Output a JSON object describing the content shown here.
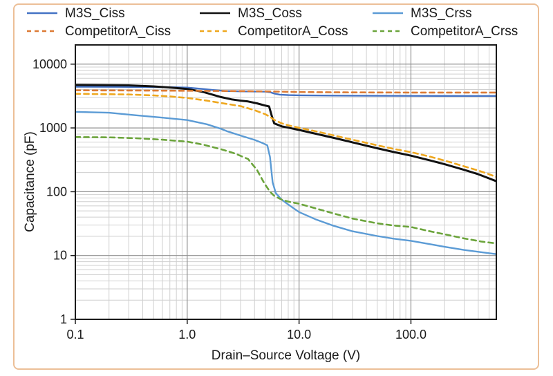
{
  "figure": {
    "border_color": "#ecbf97",
    "background": "#ffffff",
    "frame_color": "#1a1a1a",
    "grid_minor_color": "#cfcfcf",
    "grid_major_color": "#909090"
  },
  "legend": {
    "position": "top",
    "items": [
      {
        "label": "M3S_Ciss",
        "color": "#4472C4",
        "dash": "solid"
      },
      {
        "label": "M3S_Coss",
        "color": "#111111",
        "dash": "solid"
      },
      {
        "label": "M3S_Crss",
        "color": "#5B9BD5",
        "dash": "solid"
      },
      {
        "label": "CompetitorA_Ciss",
        "color": "#DC7A34",
        "dash": "dashed"
      },
      {
        "label": "CompetitorA_Coss",
        "color": "#EEA71F",
        "dash": "dashed"
      },
      {
        "label": "CompetitorA_Crss",
        "color": "#6BA43B",
        "dash": "dashed"
      }
    ]
  },
  "chart_data": {
    "type": "line",
    "title": "",
    "xlabel": "Drain–Source Voltage (V)",
    "ylabel": "Capacitance (pF)",
    "x_scale": "log",
    "y_scale": "log",
    "xlim": [
      0.1,
      580
    ],
    "ylim": [
      1,
      20000
    ],
    "x_ticks": [
      0.1,
      1,
      10,
      100
    ],
    "x_tick_labels": [
      "0.1",
      "1.0",
      "10.0",
      "100.0"
    ],
    "y_ticks": [
      10000,
      1000,
      100,
      10,
      1
    ],
    "y_tick_labels": [
      "10000",
      "1000",
      "100",
      "10",
      "1"
    ],
    "grid": "major+minor",
    "legend_position": "top",
    "series": [
      {
        "name": "M3S_Ciss",
        "color": "#4472C4",
        "style": "solid",
        "width": 2.4,
        "points": [
          [
            0.1,
            4420
          ],
          [
            0.25,
            4400
          ],
          [
            0.5,
            4370
          ],
          [
            0.8,
            4330
          ],
          [
            1,
            4290
          ],
          [
            1.3,
            4120
          ],
          [
            1.7,
            3930
          ],
          [
            2.2,
            3790
          ],
          [
            3,
            3740
          ],
          [
            4,
            3720
          ],
          [
            5,
            3700
          ],
          [
            5.5,
            3630
          ],
          [
            6,
            3460
          ],
          [
            6.7,
            3330
          ],
          [
            8,
            3270
          ],
          [
            10,
            3245
          ],
          [
            20,
            3210
          ],
          [
            50,
            3190
          ],
          [
            100,
            3180
          ],
          [
            300,
            3172
          ],
          [
            580,
            3170
          ]
        ]
      },
      {
        "name": "M3S_Coss",
        "color": "#111111",
        "style": "solid",
        "width": 3,
        "points": [
          [
            0.1,
            4720
          ],
          [
            0.3,
            4650
          ],
          [
            0.5,
            4480
          ],
          [
            0.7,
            4300
          ],
          [
            1,
            4080
          ],
          [
            1.4,
            3650
          ],
          [
            2,
            3050
          ],
          [
            2.5,
            2800
          ],
          [
            3,
            2680
          ],
          [
            3.5,
            2600
          ],
          [
            4.2,
            2430
          ],
          [
            4.9,
            2260
          ],
          [
            5.4,
            2170
          ],
          [
            5.7,
            1550
          ],
          [
            6,
            1180
          ],
          [
            7,
            1060
          ],
          [
            8,
            1010
          ],
          [
            10,
            930
          ],
          [
            15,
            790
          ],
          [
            20,
            705
          ],
          [
            30,
            595
          ],
          [
            50,
            480
          ],
          [
            70,
            420
          ],
          [
            100,
            368
          ],
          [
            150,
            308
          ],
          [
            200,
            270
          ],
          [
            300,
            220
          ],
          [
            400,
            188
          ],
          [
            500,
            162
          ],
          [
            580,
            146
          ]
        ]
      },
      {
        "name": "M3S_Crss",
        "color": "#5B9BD5",
        "style": "solid",
        "width": 2.4,
        "points": [
          [
            0.1,
            1790
          ],
          [
            0.2,
            1730
          ],
          [
            0.35,
            1580
          ],
          [
            0.6,
            1450
          ],
          [
            1,
            1330
          ],
          [
            1.5,
            1140
          ],
          [
            2,
            970
          ],
          [
            2.3,
            880
          ],
          [
            3,
            760
          ],
          [
            4,
            650
          ],
          [
            4.7,
            580
          ],
          [
            5.2,
            535
          ],
          [
            5.5,
            350
          ],
          [
            5.8,
            140
          ],
          [
            6.2,
            95
          ],
          [
            7,
            75
          ],
          [
            8,
            63
          ],
          [
            10,
            48
          ],
          [
            14,
            37
          ],
          [
            20,
            29.5
          ],
          [
            30,
            24
          ],
          [
            50,
            20.2
          ],
          [
            70,
            18.4
          ],
          [
            100,
            17
          ],
          [
            150,
            15
          ],
          [
            200,
            13.7
          ],
          [
            300,
            12.2
          ],
          [
            440,
            11.2
          ],
          [
            580,
            10.5
          ]
        ]
      },
      {
        "name": "CompetitorA_Ciss",
        "color": "#DC7A34",
        "style": "dashed",
        "width": 2.6,
        "points": [
          [
            0.1,
            3880
          ],
          [
            0.3,
            3860
          ],
          [
            0.7,
            3840
          ],
          [
            1.5,
            3810
          ],
          [
            3,
            3780
          ],
          [
            5,
            3740
          ],
          [
            7,
            3700
          ],
          [
            10,
            3660
          ],
          [
            15,
            3630
          ],
          [
            25,
            3610
          ],
          [
            50,
            3595
          ],
          [
            100,
            3590
          ],
          [
            300,
            3585
          ],
          [
            580,
            3585
          ]
        ]
      },
      {
        "name": "CompetitorA_Coss",
        "color": "#EEA71F",
        "style": "dashed",
        "width": 2.6,
        "points": [
          [
            0.1,
            3430
          ],
          [
            0.3,
            3340
          ],
          [
            0.5,
            3240
          ],
          [
            0.7,
            3120
          ],
          [
            1,
            2950
          ],
          [
            1.5,
            2680
          ],
          [
            2,
            2460
          ],
          [
            3,
            2200
          ],
          [
            4,
            1900
          ],
          [
            5,
            1640
          ],
          [
            5.5,
            1490
          ],
          [
            6,
            1340
          ],
          [
            7,
            1180
          ],
          [
            8,
            1100
          ],
          [
            10,
            1005
          ],
          [
            15,
            865
          ],
          [
            20,
            770
          ],
          [
            30,
            655
          ],
          [
            50,
            535
          ],
          [
            70,
            470
          ],
          [
            100,
            418
          ],
          [
            150,
            352
          ],
          [
            200,
            308
          ],
          [
            300,
            250
          ],
          [
            400,
            215
          ],
          [
            500,
            188
          ],
          [
            580,
            170
          ]
        ]
      },
      {
        "name": "CompetitorA_Crss",
        "color": "#6BA43B",
        "style": "dashed",
        "width": 2.6,
        "points": [
          [
            0.1,
            720
          ],
          [
            0.2,
            712
          ],
          [
            0.35,
            690
          ],
          [
            0.6,
            655
          ],
          [
            1,
            610
          ],
          [
            1.4,
            545
          ],
          [
            2,
            465
          ],
          [
            2.7,
            395
          ],
          [
            3.5,
            325
          ],
          [
            4.2,
            220
          ],
          [
            4.9,
            135
          ],
          [
            5.5,
            100
          ],
          [
            6,
            86
          ],
          [
            7,
            75
          ],
          [
            8,
            70
          ],
          [
            10,
            65
          ],
          [
            14,
            55
          ],
          [
            20,
            46
          ],
          [
            30,
            38
          ],
          [
            50,
            32
          ],
          [
            70,
            29.5
          ],
          [
            100,
            28
          ],
          [
            140,
            24.5
          ],
          [
            200,
            21.5
          ],
          [
            300,
            18.5
          ],
          [
            430,
            16.5
          ],
          [
            580,
            15.5
          ]
        ]
      }
    ]
  }
}
